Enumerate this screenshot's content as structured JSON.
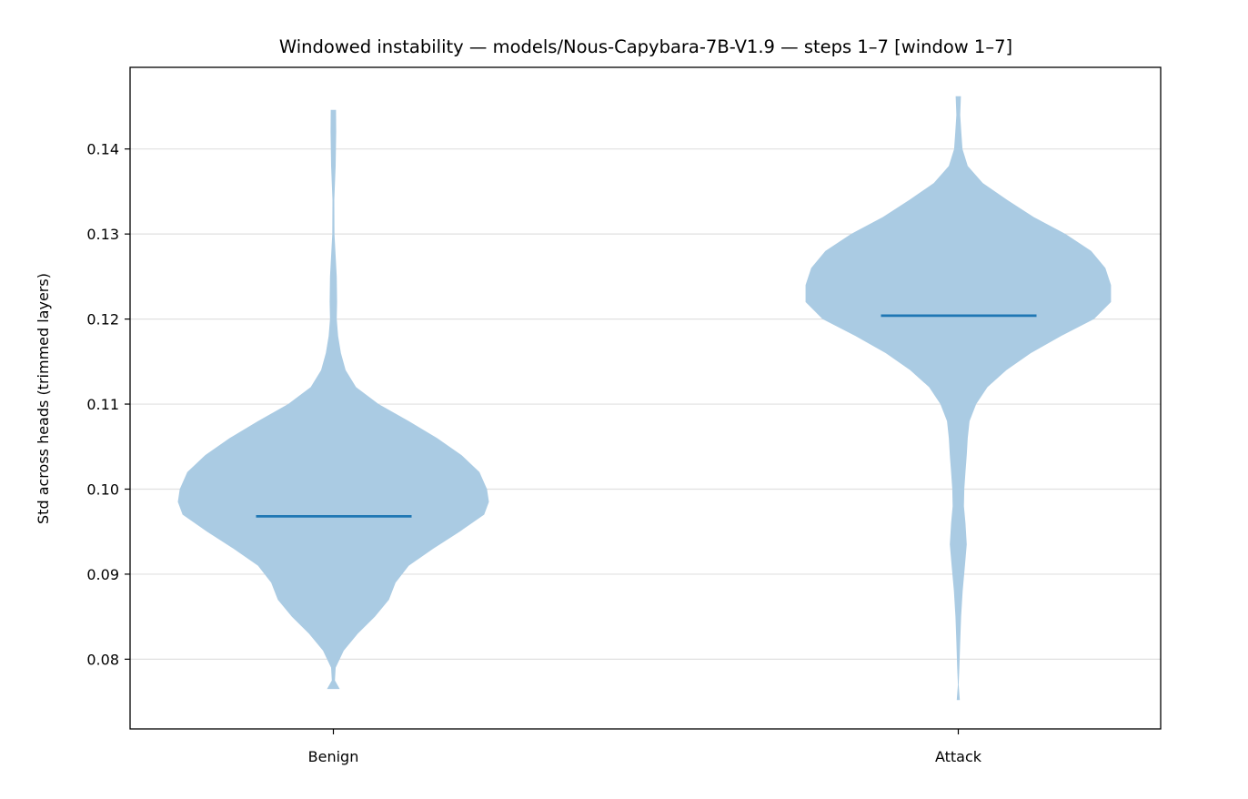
{
  "chart_data": {
    "type": "violin",
    "title": "Windowed instability — models/Nous-Capybara-7B-V1.9 — steps 1–7  [window 1–7]",
    "xlabel": "",
    "ylabel": "Std across heads (trimmed layers)",
    "ylim": [
      0.0718,
      0.1496
    ],
    "yticks": [
      0.08,
      0.09,
      0.1,
      0.11,
      0.12,
      0.13,
      0.14
    ],
    "ytick_labels": [
      "0.08",
      "0.09",
      "0.10",
      "0.11",
      "0.12",
      "0.13",
      "0.14"
    ],
    "grid": "horizontal",
    "colors": {
      "body": "#aacbe3",
      "median": "#1f77b4",
      "grid": "#e0e0e0"
    },
    "series": [
      {
        "name": "Benign",
        "median": 0.0968,
        "min": 0.0765,
        "max": 0.1446,
        "profile": [
          [
            0.1446,
            0.0014
          ],
          [
            0.142,
            0.0015
          ],
          [
            0.138,
            0.0012
          ],
          [
            0.134,
            0.0005
          ],
          [
            0.13,
            0.0006
          ],
          [
            0.125,
            0.0018
          ],
          [
            0.122,
            0.002
          ],
          [
            0.12,
            0.0018
          ],
          [
            0.118,
            0.0025
          ],
          [
            0.116,
            0.004
          ],
          [
            0.114,
            0.0065
          ],
          [
            0.112,
            0.012
          ],
          [
            0.11,
            0.024
          ],
          [
            0.108,
            0.04
          ],
          [
            0.106,
            0.055
          ],
          [
            0.104,
            0.068
          ],
          [
            0.102,
            0.0775
          ],
          [
            0.1,
            0.0815
          ],
          [
            0.0985,
            0.0825
          ],
          [
            0.097,
            0.08
          ],
          [
            0.095,
            0.067
          ],
          [
            0.093,
            0.053
          ],
          [
            0.091,
            0.04
          ],
          [
            0.089,
            0.033
          ],
          [
            0.087,
            0.0295
          ],
          [
            0.085,
            0.022
          ],
          [
            0.083,
            0.013
          ],
          [
            0.081,
            0.0055
          ],
          [
            0.079,
            0.0012
          ],
          [
            0.0775,
            0.0008
          ],
          [
            0.0765,
            0.0034
          ]
        ]
      },
      {
        "name": "Attack",
        "median": 0.1204,
        "min": 0.0752,
        "max": 0.1462,
        "profile": [
          [
            0.1462,
            0.0014
          ],
          [
            0.144,
            0.001
          ],
          [
            0.142,
            0.0016
          ],
          [
            0.14,
            0.0022
          ],
          [
            0.138,
            0.005
          ],
          [
            0.136,
            0.013
          ],
          [
            0.134,
            0.026
          ],
          [
            0.132,
            0.04
          ],
          [
            0.13,
            0.057
          ],
          [
            0.128,
            0.0705
          ],
          [
            0.126,
            0.078
          ],
          [
            0.124,
            0.081
          ],
          [
            0.122,
            0.081
          ],
          [
            0.12,
            0.072
          ],
          [
            0.118,
            0.0545
          ],
          [
            0.116,
            0.0385
          ],
          [
            0.114,
            0.0255
          ],
          [
            0.112,
            0.0155
          ],
          [
            0.11,
            0.0095
          ],
          [
            0.108,
            0.006
          ],
          [
            0.106,
            0.005
          ],
          [
            0.104,
            0.0045
          ],
          [
            0.102,
            0.0038
          ],
          [
            0.1,
            0.0032
          ],
          [
            0.098,
            0.003
          ],
          [
            0.096,
            0.0038
          ],
          [
            0.0935,
            0.0045
          ],
          [
            0.091,
            0.0035
          ],
          [
            0.088,
            0.0023
          ],
          [
            0.085,
            0.0015
          ],
          [
            0.082,
            0.001
          ],
          [
            0.079,
            0.0006
          ],
          [
            0.077,
            0.0002
          ],
          [
            0.0752,
            0.0008
          ]
        ]
      }
    ]
  }
}
